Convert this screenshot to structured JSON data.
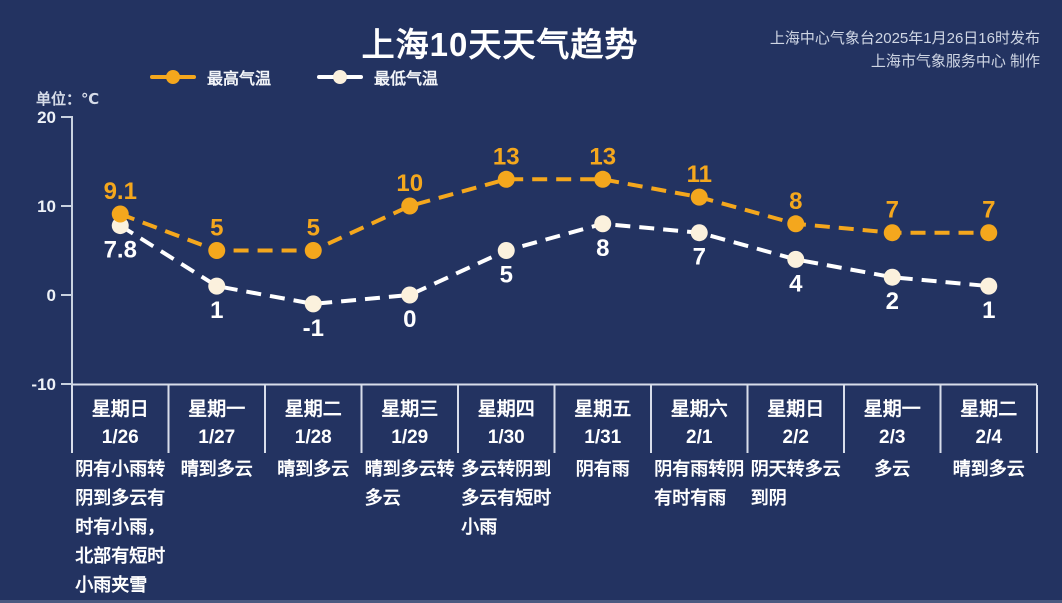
{
  "header": {
    "title": "上海10天天气趋势",
    "attribution_line1": "上海中心气象台2025年1月26日16时发布",
    "attribution_line2": "上海市气象服务中心 制作"
  },
  "legend": {
    "high_label": "最高气温",
    "low_label": "最低气温"
  },
  "unit_label": "单位：℃",
  "colors": {
    "background": "#233361",
    "high_accent": "#f4a71d",
    "low_marker": "#fbf1dd",
    "low_line": "#ffffff",
    "axis_line": "#c9d2e0",
    "table_line": "#d8deea",
    "text": "#ffffff",
    "dim_text": "#cfd6e4"
  },
  "chart_data": {
    "type": "line",
    "title": "上海10天天气趋势",
    "unit": "℃",
    "yticks": [
      20,
      10,
      0,
      -10
    ],
    "ylim": [
      -10,
      20
    ],
    "grid": false,
    "legend_position": "top-left",
    "categories": [
      {
        "day": "星期日",
        "date": "1/26",
        "desc": "阴有小雨转\n阴到多云有\n时有小雨，\n北部有短时\n小雨夹雪"
      },
      {
        "day": "星期一",
        "date": "1/27",
        "desc": "晴到多云"
      },
      {
        "day": "星期二",
        "date": "1/28",
        "desc": "晴到多云"
      },
      {
        "day": "星期三",
        "date": "1/29",
        "desc": "晴到多云转\n多云"
      },
      {
        "day": "星期四",
        "date": "1/30",
        "desc": "多云转阴到\n多云有短时\n小雨"
      },
      {
        "day": "星期五",
        "date": "1/31",
        "desc": "阴有雨"
      },
      {
        "day": "星期六",
        "date": "2/1",
        "desc": "阴有雨转阴\n有时有雨"
      },
      {
        "day": "星期日",
        "date": "2/2",
        "desc": "阴天转多云\n到阴"
      },
      {
        "day": "星期一",
        "date": "2/3",
        "desc": "多云"
      },
      {
        "day": "星期二",
        "date": "2/4",
        "desc": "晴到多云"
      }
    ],
    "series": [
      {
        "name": "最高气温",
        "values": [
          9.1,
          5,
          5,
          10,
          13,
          13,
          11,
          8,
          7,
          7
        ],
        "line_color": "#f4a71d",
        "marker_color": "#f4a71d",
        "label_color": "#f4a71d",
        "label_position": "above"
      },
      {
        "name": "最低气温",
        "values": [
          7.8,
          1,
          -1,
          0,
          5,
          8,
          7,
          4,
          2,
          1
        ],
        "line_color": "#ffffff",
        "marker_color": "#fbf1dd",
        "label_color": "#ffffff",
        "label_position": "below"
      }
    ]
  }
}
